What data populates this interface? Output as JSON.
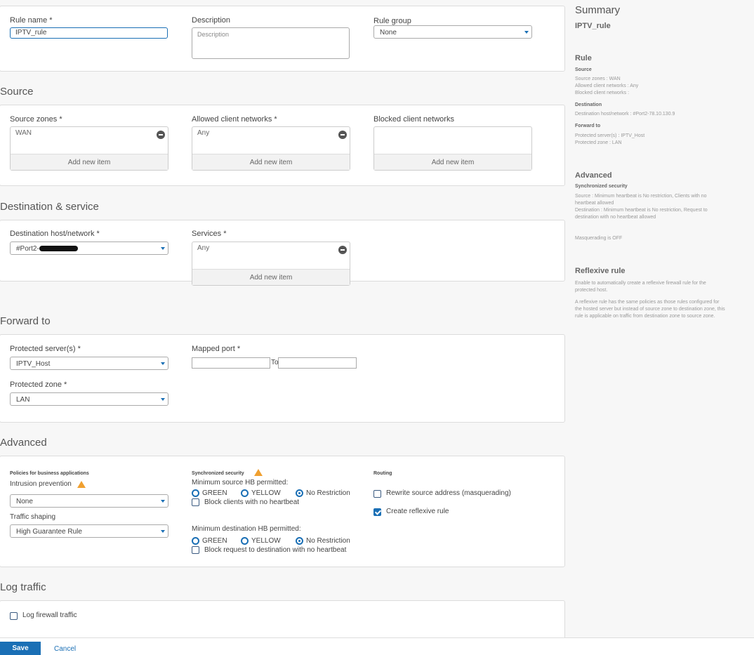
{
  "general": {
    "rule_name_label": "Rule name *",
    "rule_name_value": "IPTV_rule",
    "description_label": "Description",
    "description_placeholder": "Description",
    "rule_group_label": "Rule group",
    "rule_group_value": "None"
  },
  "source": {
    "heading": "Source",
    "zones_label": "Source zones *",
    "zones_item": "WAN",
    "allowed_label": "Allowed client networks *",
    "allowed_item": "Any",
    "blocked_label": "Blocked client networks",
    "add_item": "Add new item"
  },
  "destination": {
    "heading": "Destination & service",
    "host_label": "Destination host/network *",
    "host_value": "#Port2-",
    "services_label": "Services *",
    "services_item": "Any",
    "add_item": "Add new item"
  },
  "forward": {
    "heading": "Forward to",
    "server_label": "Protected server(s) *",
    "server_value": "IPTV_Host",
    "mapped_label": "Mapped port *",
    "to_label": "To",
    "zone_label": "Protected zone *",
    "zone_value": "LAN"
  },
  "advanced": {
    "heading": "Advanced",
    "policies_label": "Policies for business applications",
    "ips_label": "Intrusion prevention",
    "ips_value": "None",
    "shaping_label": "Traffic shaping",
    "shaping_value": "High Guarantee Rule",
    "sync_label": "Synchronized security",
    "min_src_label": "Minimum source HB permitted:",
    "min_dst_label": "Minimum destination HB permitted:",
    "green": "GREEN",
    "yellow": "YELLOW",
    "no_restriction": "No Restriction",
    "block_clients": "Block clients with no heartbeat",
    "block_request": "Block request to destination with no heartbeat",
    "routing_label": "Routing",
    "rewrite": "Rewrite source address (masquerading)",
    "reflexive": "Create reflexive rule",
    "colors": {
      "accent": "#1a6fb5",
      "warning": "#f0a030"
    }
  },
  "log": {
    "heading": "Log traffic",
    "log_firewall": "Log firewall traffic"
  },
  "footer": {
    "save": "Save",
    "cancel": "Cancel"
  },
  "summary": {
    "title": "Summary",
    "rule_name": "IPTV_rule",
    "rule_heading": "Rule",
    "source_heading": "Source",
    "source_zones": "Source zones : WAN",
    "allowed": "Allowed client networks : Any",
    "blocked": "Blocked client networks :",
    "destination_heading": "Destination",
    "dest_host": "Destination host/network : #Port2-78.10.130.9",
    "forward_heading": "Forward to",
    "protected_server": "Protected server(s) : IPTV_Host",
    "protected_zone": "Protected zone : LAN",
    "advanced_heading": "Advanced",
    "sync_heading": "Synchronized security",
    "sync_source": "Source : Minimum heartbeat is No restriction, Clients with no heartbeat allowed",
    "sync_dest": "Destination : Minimum heartbeat is No restriction, Request to destination with no heartbeat allowed",
    "masq": "Masquerading is OFF",
    "reflexive_heading": "Reflexive rule",
    "reflexive_p1": "Enable to automatically create a reflexive firewall rule for the protected host.",
    "reflexive_p2": "A reflexive rule has the same policies as those rules configured for the hosted server but instead of source zone to destination zone, this rule is applicable on traffic from destination zone to source zone."
  }
}
